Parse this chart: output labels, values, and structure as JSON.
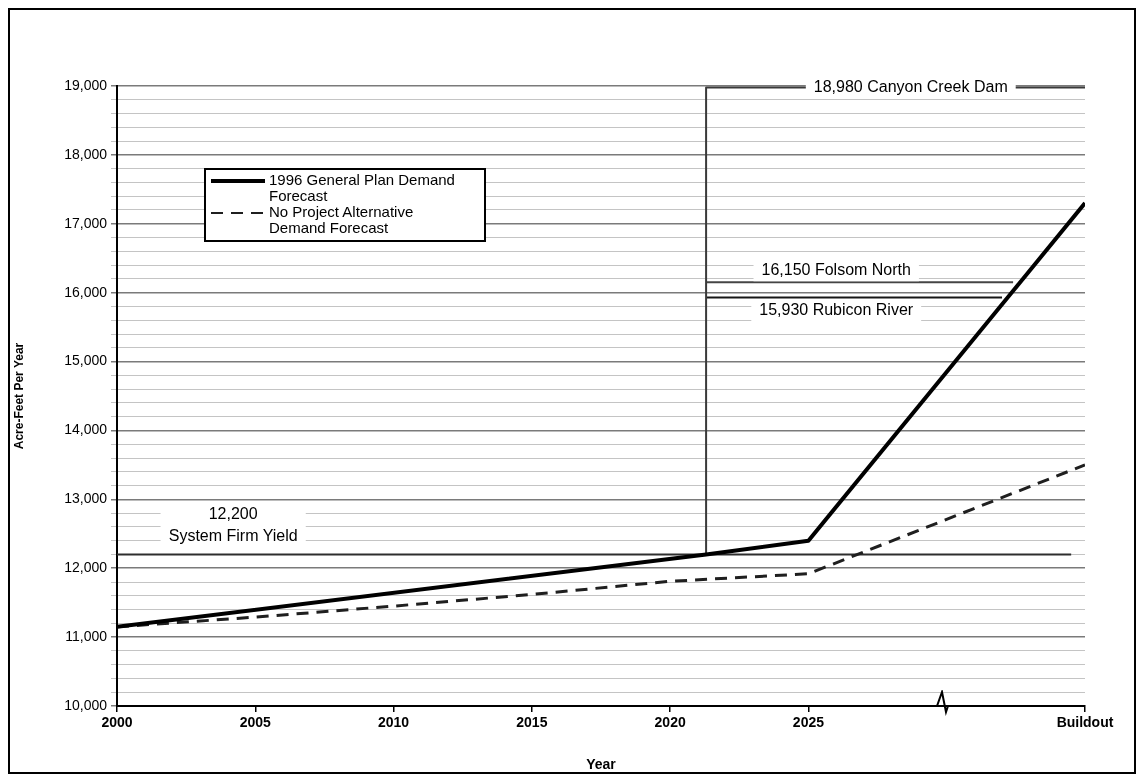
{
  "chart_data": {
    "type": "line",
    "xlabel": "Year",
    "ylabel": "Acre-Feet Per Year",
    "xlim": [
      2000,
      2035
    ],
    "xticks": [
      2000,
      2005,
      2010,
      2015,
      2020,
      2025,
      {
        "value": 2035,
        "label": "Buildout"
      }
    ],
    "ylim": [
      10000,
      19000
    ],
    "yticks": [
      {
        "value": 10000,
        "label": "10,000"
      },
      {
        "value": 10200,
        "label": null
      },
      {
        "value": 10400,
        "label": null
      },
      {
        "value": 10600,
        "label": null
      },
      {
        "value": 10800,
        "label": null
      },
      {
        "value": 11000,
        "label": "11,000"
      },
      {
        "value": 11200,
        "label": null
      },
      {
        "value": 11400,
        "label": null
      },
      {
        "value": 11600,
        "label": null
      },
      {
        "value": 11800,
        "label": null
      },
      {
        "value": 12000,
        "label": "12,000"
      },
      {
        "value": 12200,
        "label": null
      },
      {
        "value": 12400,
        "label": null
      },
      {
        "value": 12600,
        "label": null
      },
      {
        "value": 12800,
        "label": null
      },
      {
        "value": 13000,
        "label": "13,000"
      },
      {
        "value": 13200,
        "label": null
      },
      {
        "value": 13400,
        "label": null
      },
      {
        "value": 13600,
        "label": null
      },
      {
        "value": 13800,
        "label": null
      },
      {
        "value": 14000,
        "label": "14,000"
      },
      {
        "value": 14200,
        "label": null
      },
      {
        "value": 14400,
        "label": null
      },
      {
        "value": 14600,
        "label": null
      },
      {
        "value": 14800,
        "label": null
      },
      {
        "value": 15000,
        "label": "15,000"
      },
      {
        "value": 15200,
        "label": null
      },
      {
        "value": 15400,
        "label": null
      },
      {
        "value": 15600,
        "label": null
      },
      {
        "value": 15800,
        "label": null
      },
      {
        "value": 16000,
        "label": "16,000"
      },
      {
        "value": 16200,
        "label": null
      },
      {
        "value": 16400,
        "label": null
      },
      {
        "value": 16600,
        "label": null
      },
      {
        "value": 16800,
        "label": null
      },
      {
        "value": 17000,
        "label": "17,000"
      },
      {
        "value": 17200,
        "label": null
      },
      {
        "value": 17400,
        "label": null
      },
      {
        "value": 17600,
        "label": null
      },
      {
        "value": 17800,
        "label": null
      },
      {
        "value": 18000,
        "label": "18,000"
      },
      {
        "value": 18200,
        "label": null
      },
      {
        "value": 18400,
        "label": null
      },
      {
        "value": 18600,
        "label": null
      },
      {
        "value": 18800,
        "label": null
      },
      {
        "value": 19000,
        "label": "19,000"
      }
    ],
    "grid": "y",
    "legend": "top left",
    "marker": "none",
    "series": [
      {
        "name": "1996 General Plan Demand Forecast",
        "color": "#000000",
        "line_style": "solid",
        "x": [
          2000,
          2021.3,
          2025,
          2035
        ],
        "values": [
          11150,
          12200,
          12400,
          17300
        ]
      },
      {
        "name": "No Project Alternative Demand Forecast",
        "color": "#1f1f1f",
        "line_style": "dashed",
        "x": [
          2000,
          2005,
          2010,
          2015,
          2020,
          2025,
          2035
        ],
        "values": [
          11150,
          11290,
          11450,
          11620,
          11810,
          11920,
          13500
        ]
      },
      {
        "color": "#2e2e2e",
        "x": [
          2000,
          2034.5
        ],
        "values": [
          12200,
          12200
        ]
      },
      {
        "color": "#3a3a3a",
        "x": [
          2021.3,
          2021.3,
          2035
        ],
        "values": [
          12200,
          18980,
          18980
        ]
      },
      {
        "color": "#454545",
        "x": [
          2021.3,
          2032.4
        ],
        "values": [
          16150,
          16150
        ]
      },
      {
        "color": "#161616",
        "x": [
          2021.3,
          2032
        ],
        "values": [
          15930,
          15930
        ]
      }
    ],
    "annotations": [
      "18,980 Canyon Creek Dam",
      "16,150 Folsom North",
      "15,930 Rubicon River",
      "12,200\nSystem Firm Yield"
    ]
  }
}
